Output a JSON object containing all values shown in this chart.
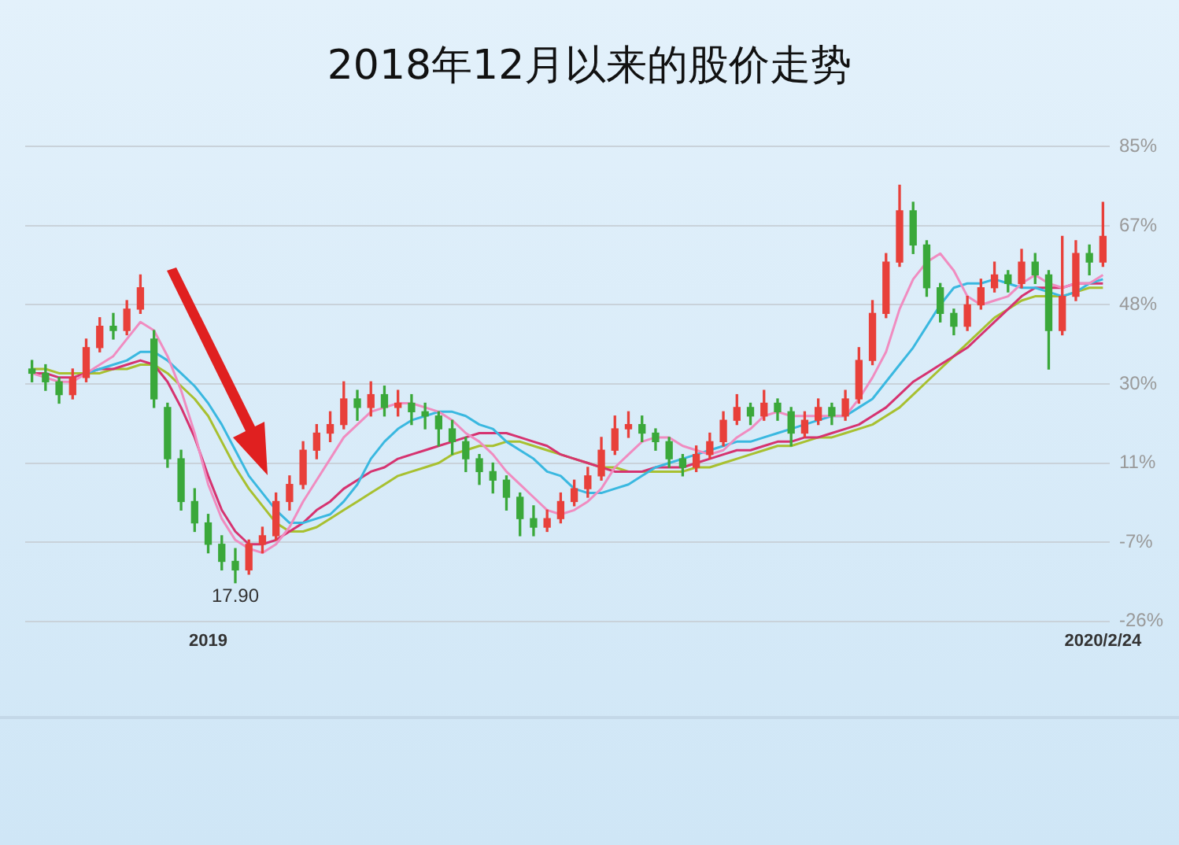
{
  "chart_data": {
    "type": "candlestick",
    "title": "2018年12月以来的股价走势",
    "categories": [
      null,
      null,
      null,
      null,
      null,
      null,
      null,
      null,
      null,
      null,
      null,
      null,
      null,
      "2019",
      null,
      null,
      null,
      null,
      null,
      null,
      null,
      null,
      null,
      null,
      null,
      null,
      null,
      null,
      null,
      null,
      null,
      null,
      null,
      null,
      null,
      null,
      null,
      null,
      null,
      null,
      null,
      null,
      null,
      null,
      null,
      null,
      null,
      null,
      null,
      null,
      null,
      null,
      null,
      null,
      null,
      null,
      null,
      null,
      null,
      null,
      null,
      null,
      null,
      null,
      null,
      null,
      null,
      null,
      null,
      null,
      null,
      null,
      null,
      null,
      null,
      null,
      null,
      null,
      null,
      "2020/2/24"
    ],
    "ohlc": [
      [
        33,
        35,
        30,
        32
      ],
      [
        32,
        34,
        28,
        30
      ],
      [
        30,
        31,
        25,
        27
      ],
      [
        27,
        33,
        26,
        31
      ],
      [
        31,
        40,
        30,
        38
      ],
      [
        38,
        45,
        37,
        43
      ],
      [
        43,
        46,
        40,
        42
      ],
      [
        42,
        49,
        41,
        47
      ],
      [
        47,
        55,
        46,
        52
      ],
      [
        40,
        42,
        24,
        26
      ],
      [
        24,
        25,
        10,
        12
      ],
      [
        12,
        14,
        0,
        2
      ],
      [
        2,
        5,
        -5,
        -3
      ],
      [
        -3,
        -1,
        -10,
        -8
      ],
      [
        -8,
        -6,
        -14,
        -12
      ],
      [
        -12,
        -9,
        -17,
        -14
      ],
      [
        -14,
        -7,
        -15,
        -8
      ],
      [
        -8,
        -4,
        -10,
        -6
      ],
      [
        -6,
        4,
        -7,
        2
      ],
      [
        2,
        8,
        0,
        6
      ],
      [
        6,
        16,
        5,
        14
      ],
      [
        14,
        20,
        12,
        18
      ],
      [
        18,
        23,
        16,
        20
      ],
      [
        20,
        30,
        19,
        26
      ],
      [
        26,
        28,
        21,
        24
      ],
      [
        24,
        30,
        22,
        27
      ],
      [
        27,
        29,
        22,
        24
      ],
      [
        24,
        28,
        22,
        25
      ],
      [
        25,
        27,
        20,
        23
      ],
      [
        23,
        25,
        19,
        22
      ],
      [
        22,
        23,
        15,
        19
      ],
      [
        19,
        21,
        13,
        16
      ],
      [
        16,
        17,
        9,
        12
      ],
      [
        12,
        13,
        6,
        9
      ],
      [
        9,
        11,
        4,
        7
      ],
      [
        7,
        8,
        0,
        3
      ],
      [
        3,
        4,
        -6,
        -2
      ],
      [
        -2,
        1,
        -6,
        -4
      ],
      [
        -4,
        0,
        -5,
        -2
      ],
      [
        -2,
        4,
        -3,
        2
      ],
      [
        2,
        7,
        1,
        5
      ],
      [
        5,
        10,
        3,
        8
      ],
      [
        8,
        17,
        7,
        14
      ],
      [
        14,
        22,
        13,
        19
      ],
      [
        19,
        23,
        17,
        20
      ],
      [
        20,
        22,
        16,
        18
      ],
      [
        18,
        19,
        14,
        16
      ],
      [
        16,
        17,
        10,
        12
      ],
      [
        12,
        13,
        8,
        10
      ],
      [
        10,
        15,
        9,
        13
      ],
      [
        13,
        18,
        12,
        16
      ],
      [
        16,
        23,
        15,
        21
      ],
      [
        21,
        27,
        20,
        24
      ],
      [
        24,
        25,
        20,
        22
      ],
      [
        22,
        28,
        21,
        25
      ],
      [
        25,
        26,
        21,
        23
      ],
      [
        23,
        24,
        15,
        18
      ],
      [
        18,
        23,
        17,
        21
      ],
      [
        21,
        26,
        20,
        24
      ],
      [
        24,
        25,
        20,
        22
      ],
      [
        22,
        28,
        21,
        26
      ],
      [
        26,
        38,
        25,
        35
      ],
      [
        35,
        49,
        34,
        46
      ],
      [
        46,
        60,
        45,
        58
      ],
      [
        58,
        76,
        57,
        70
      ],
      [
        70,
        72,
        60,
        62
      ],
      [
        62,
        63,
        50,
        52
      ],
      [
        52,
        53,
        44,
        46
      ],
      [
        46,
        47,
        41,
        43
      ],
      [
        43,
        50,
        42,
        48
      ],
      [
        48,
        54,
        47,
        52
      ],
      [
        52,
        58,
        51,
        55
      ],
      [
        55,
        56,
        51,
        53
      ],
      [
        53,
        61,
        52,
        58
      ],
      [
        58,
        60,
        53,
        55
      ],
      [
        55,
        56,
        33,
        42
      ],
      [
        42,
        64,
        41,
        50
      ],
      [
        50,
        63,
        49,
        60
      ],
      [
        60,
        62,
        55,
        58
      ],
      [
        58,
        72,
        57,
        64
      ]
    ],
    "colors": [
      "#3aa83a",
      "#3aa83a",
      "#3aa83a",
      "#e8403a",
      "#e8403a",
      "#e8403a",
      "#3aa83a",
      "#e8403a",
      "#e8403a",
      "#3aa83a",
      "#3aa83a",
      "#3aa83a",
      "#3aa83a",
      "#3aa83a",
      "#3aa83a",
      "#3aa83a",
      "#e8403a",
      "#e8403a",
      "#e8403a",
      "#e8403a",
      "#e8403a",
      "#e8403a",
      "#e8403a",
      "#e8403a",
      "#3aa83a",
      "#e8403a",
      "#3aa83a",
      "#e8403a",
      "#3aa83a",
      "#3aa83a",
      "#3aa83a",
      "#3aa83a",
      "#3aa83a",
      "#3aa83a",
      "#3aa83a",
      "#3aa83a",
      "#3aa83a",
      "#3aa83a",
      "#e8403a",
      "#e8403a",
      "#e8403a",
      "#e8403a",
      "#e8403a",
      "#e8403a",
      "#e8403a",
      "#3aa83a",
      "#3aa83a",
      "#3aa83a",
      "#3aa83a",
      "#e8403a",
      "#e8403a",
      "#e8403a",
      "#e8403a",
      "#3aa83a",
      "#e8403a",
      "#3aa83a",
      "#3aa83a",
      "#e8403a",
      "#e8403a",
      "#3aa83a",
      "#e8403a",
      "#e8403a",
      "#e8403a",
      "#e8403a",
      "#e8403a",
      "#3aa83a",
      "#3aa83a",
      "#3aa83a",
      "#3aa83a",
      "#e8403a",
      "#e8403a",
      "#e8403a",
      "#3aa83a",
      "#e8403a",
      "#3aa83a",
      "#3aa83a",
      "#e8403a",
      "#e8403a",
      "#3aa83a",
      "#e8403a"
    ],
    "series": [
      {
        "type": "line",
        "color": "#f08cc0",
        "values": [
          32,
          31,
          30,
          30,
          32,
          34,
          36,
          40,
          44,
          42,
          36,
          28,
          18,
          6,
          -2,
          -7,
          -9,
          -10,
          -8,
          -4,
          2,
          7,
          12,
          17,
          20,
          23,
          24,
          25,
          25,
          24,
          23,
          21,
          18,
          16,
          13,
          9,
          6,
          3,
          0,
          -1,
          0,
          2,
          5,
          10,
          13,
          16,
          17,
          17,
          15,
          14,
          13,
          14,
          17,
          19,
          22,
          23,
          22,
          22,
          22,
          22,
          22,
          26,
          31,
          37,
          47,
          54,
          58,
          60,
          56,
          50,
          48,
          49,
          50,
          53,
          55,
          53,
          52,
          53,
          53,
          55
        ]
      },
      {
        "type": "line",
        "color": "#3ab8e0",
        "values": [
          null,
          null,
          null,
          null,
          32,
          33,
          34,
          35,
          37,
          37,
          35,
          32,
          29,
          25,
          20,
          14,
          8,
          4,
          0,
          -3,
          -3,
          -2,
          -1,
          2,
          6,
          12,
          16,
          19,
          21,
          22,
          23,
          23,
          22,
          20,
          19,
          16,
          14,
          12,
          9,
          8,
          5,
          4,
          4,
          5,
          6,
          8,
          10,
          11,
          12,
          13,
          14,
          15,
          16,
          16,
          17,
          18,
          19,
          20,
          21,
          22,
          22,
          24,
          26,
          30,
          34,
          38,
          43,
          48,
          52,
          53,
          53,
          54,
          53,
          52,
          52,
          51,
          50,
          51,
          53,
          54
        ]
      },
      {
        "type": "line",
        "color": "#d63370",
        "values": [
          32,
          32,
          31,
          31,
          32,
          33,
          33,
          34,
          35,
          34,
          30,
          24,
          17,
          8,
          0,
          -5,
          -8,
          -8,
          -7,
          -5,
          -3,
          0,
          2,
          5,
          7,
          9,
          10,
          12,
          13,
          14,
          15,
          16,
          17,
          18,
          18,
          18,
          17,
          16,
          15,
          13,
          12,
          11,
          10,
          9,
          9,
          9,
          10,
          10,
          10,
          11,
          12,
          13,
          14,
          14,
          15,
          16,
          16,
          17,
          17,
          18,
          19,
          20,
          22,
          24,
          27,
          30,
          32,
          34,
          36,
          38,
          41,
          44,
          47,
          50,
          52,
          52,
          52,
          53,
          53,
          53
        ]
      },
      {
        "type": "line",
        "color": "#a8c030",
        "values": [
          33,
          33,
          32,
          32,
          32,
          32,
          33,
          33,
          34,
          34,
          32,
          29,
          26,
          22,
          16,
          10,
          5,
          1,
          -3,
          -5,
          -5,
          -4,
          -2,
          0,
          2,
          4,
          6,
          8,
          9,
          10,
          11,
          13,
          14,
          15,
          15,
          16,
          16,
          15,
          14,
          13,
          12,
          11,
          10,
          10,
          9,
          9,
          9,
          9,
          9,
          10,
          10,
          11,
          12,
          13,
          14,
          15,
          15,
          16,
          17,
          17,
          18,
          19,
          20,
          22,
          24,
          27,
          30,
          33,
          36,
          39,
          42,
          45,
          47,
          49,
          50,
          50,
          50,
          51,
          52,
          52
        ]
      }
    ],
    "ylim": [
      -26,
      85
    ],
    "yticks": [
      {
        "value": 85,
        "label": "85%"
      },
      {
        "value": 66.5,
        "label": "67%"
      },
      {
        "value": 48,
        "label": "48%"
      },
      {
        "value": 29.5,
        "label": "30%"
      },
      {
        "value": 11,
        "label": "11%"
      },
      {
        "value": -7.5,
        "label": "-7%"
      },
      {
        "value": -26,
        "label": "-26%"
      }
    ],
    "grid": "y",
    "marker": "none",
    "line_style": "solid",
    "annotations": [
      {
        "text": "17.90",
        "y": -17
      }
    ]
  }
}
